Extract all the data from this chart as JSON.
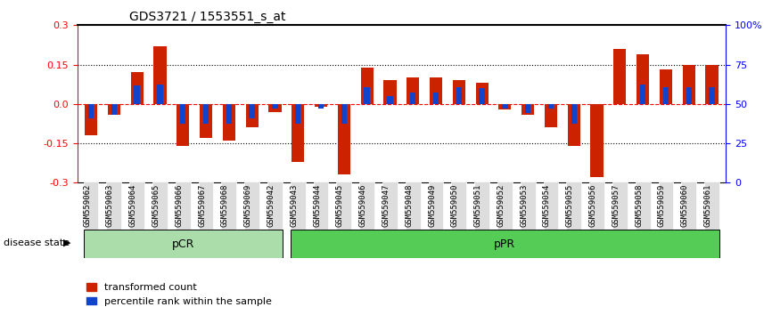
{
  "title": "GDS3721 / 1553551_s_at",
  "categories": [
    "GSM559062",
    "GSM559063",
    "GSM559064",
    "GSM559065",
    "GSM559066",
    "GSM559067",
    "GSM559068",
    "GSM559069",
    "GSM559042",
    "GSM559043",
    "GSM559044",
    "GSM559045",
    "GSM559046",
    "GSM559047",
    "GSM559048",
    "GSM559049",
    "GSM559050",
    "GSM559051",
    "GSM559052",
    "GSM559053",
    "GSM559054",
    "GSM559055",
    "GSM559056",
    "GSM559057",
    "GSM559058",
    "GSM559059",
    "GSM559060",
    "GSM559061"
  ],
  "red_values": [
    -0.12,
    -0.04,
    0.12,
    0.22,
    -0.16,
    -0.13,
    -0.14,
    -0.09,
    -0.03,
    -0.22,
    -0.01,
    -0.27,
    0.14,
    0.09,
    0.1,
    0.1,
    0.09,
    0.08,
    -0.02,
    -0.04,
    -0.09,
    -0.16,
    -0.28,
    0.21,
    0.19,
    0.13,
    0.15,
    0.15
  ],
  "blue_values": [
    -0.055,
    -0.04,
    0.07,
    0.075,
    -0.075,
    -0.075,
    -0.075,
    -0.055,
    -0.018,
    -0.075,
    -0.018,
    -0.075,
    0.065,
    0.03,
    0.045,
    0.045,
    0.065,
    0.06,
    -0.018,
    -0.035,
    -0.018,
    -0.075,
    0.0,
    0.0,
    0.075,
    0.065,
    0.065,
    0.065
  ],
  "pCR_indices": [
    0,
    1,
    2,
    3,
    4,
    5,
    6,
    7,
    8
  ],
  "pPR_indices": [
    9,
    10,
    11,
    12,
    13,
    14,
    15,
    16,
    17,
    18,
    19,
    20,
    21,
    22,
    23,
    24,
    25,
    26,
    27
  ],
  "ylim": [
    -0.3,
    0.3
  ],
  "y2lim": [
    0,
    100
  ],
  "yticks": [
    -0.3,
    -0.15,
    0.0,
    0.15,
    0.3
  ],
  "y2ticks": [
    0,
    25,
    50,
    75,
    100
  ],
  "hlines": [
    0.15,
    0.0,
    -0.15
  ],
  "bar_color": "#cc2200",
  "blue_color": "#1144cc",
  "pCR_color": "#aaddaa",
  "pPR_color": "#55cc55",
  "legend_red": "transformed count",
  "legend_blue": "percentile rank within the sample",
  "label_disease": "disease state",
  "label_pCR": "pCR",
  "label_pPR": "pPR"
}
